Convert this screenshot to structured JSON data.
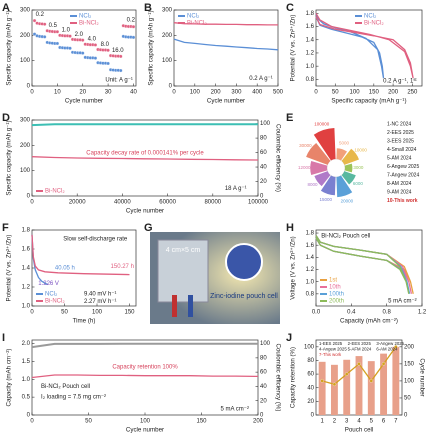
{
  "chart_data": [
    {
      "type": "scatter",
      "panel": "A",
      "xlabel": "Cycle number",
      "ylabel": "Specific capacity (mAh g⁻¹)",
      "xlim": [
        0,
        41
      ],
      "ylim": [
        0,
        300
      ],
      "xticks": [
        0,
        10,
        20,
        30,
        40
      ],
      "yticks": [
        0,
        100,
        200,
        300
      ],
      "legend": "upper center",
      "series": [
        {
          "name": "NCl₂",
          "color": "#5b8fd6",
          "mode": "markers",
          "x": [
            1,
            2,
            3,
            4,
            5,
            6,
            7,
            8,
            9,
            10,
            11,
            12,
            13,
            14,
            15,
            16,
            17,
            18,
            19,
            20,
            21,
            22,
            23,
            24,
            25,
            26,
            27,
            28,
            29,
            30,
            31,
            32,
            33,
            34,
            35,
            36,
            37,
            38,
            39,
            40
          ],
          "values": [
            205,
            198,
            196,
            195,
            194,
            172,
            170,
            169,
            168,
            168,
            152,
            151,
            150,
            150,
            149,
            133,
            132,
            131,
            131,
            130,
            113,
            112,
            111,
            111,
            110,
            92,
            91,
            90,
            90,
            89,
            64,
            63,
            62,
            62,
            61,
            196,
            194,
            193,
            193,
            192
          ]
        },
        {
          "name": "Bi-NCl₂",
          "color": "#e06080",
          "mode": "markers",
          "x": [
            1,
            2,
            3,
            4,
            5,
            6,
            7,
            8,
            9,
            10,
            11,
            12,
            13,
            14,
            15,
            16,
            17,
            18,
            19,
            20,
            21,
            22,
            23,
            24,
            25,
            26,
            27,
            28,
            29,
            30,
            31,
            32,
            33,
            34,
            35,
            36,
            37,
            38,
            39,
            40
          ],
          "values": [
            258,
            248,
            246,
            245,
            244,
            218,
            216,
            215,
            214,
            214,
            200,
            199,
            198,
            198,
            197,
            184,
            183,
            182,
            182,
            181,
            165,
            164,
            163,
            163,
            162,
            144,
            143,
            142,
            142,
            141,
            120,
            119,
            118,
            118,
            117,
            238,
            236,
            235,
            235,
            234
          ]
        }
      ],
      "annotations": [
        "0.2",
        "0.5",
        "1.0",
        "2.0",
        "4.0",
        "8.0",
        "16.0",
        "0.2",
        "Unit: A g⁻¹"
      ]
    },
    {
      "type": "line",
      "panel": "B",
      "xlabel": "Cycle number",
      "ylabel": "Specific capacity (mAh g⁻¹)",
      "xlim": [
        0,
        500
      ],
      "ylim": [
        0,
        300
      ],
      "xticks": [
        0,
        100,
        200,
        300,
        400,
        500
      ],
      "yticks": [
        0,
        100,
        200,
        300
      ],
      "legend": "upper left",
      "series": [
        {
          "name": "NCl₂",
          "color": "#5b8fd6",
          "mode": "line",
          "x": [
            0,
            50,
            100,
            150,
            200,
            250,
            300,
            350,
            400,
            450,
            500
          ],
          "values": [
            185,
            172,
            168,
            164,
            160,
            157,
            154,
            151,
            148,
            146,
            143
          ]
        },
        {
          "name": "Bi-NCl₂",
          "color": "#e06080",
          "mode": "line",
          "x": [
            0,
            50,
            100,
            150,
            200,
            250,
            300,
            350,
            400,
            450,
            500
          ],
          "values": [
            250,
            246,
            245,
            244,
            244,
            243,
            243,
            242,
            242,
            241,
            241
          ]
        }
      ],
      "annotations": [
        "0.2 A g⁻¹"
      ]
    },
    {
      "type": "line",
      "panel": "C",
      "xlabel": "Specific capacity (mAh g⁻¹)",
      "ylabel": "Potential (V vs. Zn²⁺/Zn)",
      "xlim": [
        0,
        275
      ],
      "ylim": [
        0.7,
        1.85
      ],
      "xticks": [
        0,
        50,
        100,
        150,
        200,
        250
      ],
      "yticks": [
        0.8,
        {
          "value": 1,
          "label": "1.0"
        },
        1.2,
        1.4,
        1.6,
        1.8
      ],
      "legend": "upper center",
      "series": [
        {
          "name": "NCl₂",
          "color": "#5b8fd6",
          "mode": "line",
          "x": [
            0,
            10,
            40,
            80,
            120,
            150,
            165,
            172,
            175,
            170,
            160,
            130,
            90,
            50,
            20,
            5,
            0
          ],
          "values": [
            1.75,
            1.62,
            1.56,
            1.5,
            1.44,
            1.36,
            1.2,
            1.0,
            0.82,
            1.0,
            1.25,
            1.42,
            1.52,
            1.58,
            1.64,
            1.72,
            1.8
          ]
        },
        {
          "name": "Bi-NCl₂",
          "color": "#e06080",
          "mode": "line",
          "x": [
            0,
            10,
            50,
            100,
            150,
            200,
            230,
            245,
            252,
            245,
            230,
            190,
            140,
            90,
            40,
            10,
            0
          ],
          "values": [
            1.75,
            1.63,
            1.56,
            1.51,
            1.46,
            1.4,
            1.25,
            1.05,
            0.82,
            1.0,
            1.22,
            1.4,
            1.48,
            1.54,
            1.6,
            1.7,
            1.8
          ]
        }
      ],
      "annotations": [
        "0.2 A g⁻¹, 1ˢᵗ"
      ]
    },
    {
      "type": "line",
      "panel": "D",
      "xlabel": "Cycle number",
      "ylabel": "Specific capacity (mAh g⁻¹)",
      "y2label": "Coulombic efficiency (%)",
      "xlim": [
        0,
        100000
      ],
      "ylim": [
        0,
        300
      ],
      "y2lim": [
        0,
        105
      ],
      "xticks": [
        0,
        20000,
        40000,
        60000,
        80000,
        100000
      ],
      "yticks": [
        0,
        100,
        200,
        300
      ],
      "y2ticks": [
        0,
        20,
        40,
        60,
        80,
        100
      ],
      "legend": "lower left",
      "series": [
        {
          "name": "Bi-NCl₂",
          "color": "#e06080",
          "mode": "line",
          "x": [
            0,
            10000,
            20000,
            30000,
            40000,
            50000,
            60000,
            70000,
            80000,
            90000,
            100000
          ],
          "values": [
            155,
            152,
            150,
            149,
            148,
            147,
            146,
            145,
            144,
            143,
            142
          ]
        },
        {
          "color": "#3cbfb4",
          "mode": "line",
          "axis": "y2",
          "x": [
            0,
            10000,
            20000,
            30000,
            40000,
            50000,
            60000,
            70000,
            80000,
            90000,
            100000
          ],
          "values": [
            98,
            99,
            99,
            99,
            99,
            99,
            99,
            99,
            99,
            99,
            99
          ]
        }
      ],
      "annotations": [
        "Capacity decay rate of 0.000141% per cycle",
        "18 A g⁻¹"
      ]
    },
    {
      "type": "radial_bar",
      "panel": "E",
      "log": true,
      "ylim": [
        1000,
        100000
      ],
      "categories": [
        "1-NC 2024",
        "2-EES 2025",
        "3-EES 2025",
        "4-Small 2024",
        "5-AM 2024",
        "6-Angew 2025",
        "7-Angew 2024",
        "8-AM 2024",
        "9-AM 2024",
        "10-This work"
      ],
      "values": [
        5000,
        10000,
        3000,
        6000,
        20000,
        15000,
        8000,
        12000,
        30000,
        100000
      ],
      "colors": [
        "#f2a07a",
        "#e8b84a",
        "#9cc45a",
        "#58b8a0",
        "#5aa0d8",
        "#7a80d0",
        "#b07ac8",
        "#d878a8",
        "#e8846a",
        "#e04040"
      ]
    },
    {
      "type": "line",
      "panel": "F",
      "xlabel": "Time (h)",
      "ylabel": "Potential (V vs. Zn²⁺/Zn)",
      "xlim": [
        0,
        160
      ],
      "ylim": [
        1.0,
        1.8
      ],
      "xticks": [
        0,
        50,
        100,
        150
      ],
      "yticks": [
        {
          "value": 1,
          "label": "1.0"
        },
        1.2,
        1.4,
        1.6,
        1.8
      ],
      "legend": "lower left",
      "series": [
        {
          "name": "NCl₂",
          "color": "#5b8fd6",
          "mode": "line",
          "x": [
            0,
            2,
            5,
            10,
            15,
            20,
            24
          ],
          "values": [
            1.75,
            1.5,
            1.38,
            1.3,
            1.26,
            1.24,
            1.226
          ]
        },
        {
          "name": "Bi-NCl₂",
          "color": "#e06080",
          "mode": "line",
          "x": [
            0,
            2,
            5,
            10,
            20,
            40,
            80,
            120,
            150
          ],
          "values": [
            1.75,
            1.52,
            1.42,
            1.38,
            1.36,
            1.35,
            1.34,
            1.335,
            1.33
          ]
        }
      ],
      "annotations": [
        "Slow self-discharge rate",
        "1.226 V",
        "40.05 h",
        "150.27 h",
        "9.40 mV h⁻¹",
        "2.27 mV h⁻¹"
      ]
    },
    {
      "type": "line",
      "panel": "H",
      "xlabel": "Capacity (mAh cm⁻²)",
      "ylabel": "Voltage (V vs. Zn²⁺/Zn)",
      "xlim": [
        0,
        1.2
      ],
      "ylim": [
        0.6,
        1.85
      ],
      "xticks": [
        {
          "value": 0,
          "label": "0.0"
        },
        0.4,
        0.8,
        1.2
      ],
      "yticks": [
        0.8,
        {
          "value": 1,
          "label": "1.0"
        },
        1.2,
        1.4,
        1.6,
        1.8
      ],
      "legend": "lower left",
      "series": [
        {
          "name": "1st",
          "color": "#e8a040",
          "mode": "line",
          "x": [
            0,
            0.05,
            0.2,
            0.5,
            0.8,
            1.0,
            1.07,
            1.1,
            1.07,
            1.0,
            0.8,
            0.5,
            0.2,
            0.05,
            0
          ],
          "values": [
            1.72,
            1.6,
            1.5,
            1.42,
            1.35,
            1.2,
            1.0,
            0.8,
            1.0,
            1.25,
            1.45,
            1.52,
            1.58,
            1.65,
            1.76
          ]
        },
        {
          "name": "10th",
          "color": "#e8709a",
          "mode": "line",
          "x": [
            0,
            0.05,
            0.2,
            0.5,
            0.8,
            0.98,
            1.05,
            1.08,
            1.05,
            0.98,
            0.8,
            0.5,
            0.2,
            0.05,
            0
          ],
          "values": [
            1.72,
            1.6,
            1.5,
            1.42,
            1.35,
            1.2,
            1.0,
            0.8,
            1.0,
            1.25,
            1.45,
            1.52,
            1.58,
            1.65,
            1.76
          ]
        },
        {
          "name": "100th",
          "color": "#5aa0d8",
          "mode": "line",
          "x": [
            0,
            0.05,
            0.2,
            0.5,
            0.8,
            0.96,
            1.03,
            1.06,
            1.03,
            0.96,
            0.8,
            0.5,
            0.2,
            0.05,
            0
          ],
          "values": [
            1.72,
            1.6,
            1.5,
            1.42,
            1.35,
            1.2,
            1.0,
            0.8,
            1.0,
            1.25,
            1.45,
            1.52,
            1.58,
            1.65,
            1.76
          ]
        },
        {
          "name": "200th",
          "color": "#8dbb5a",
          "mode": "line",
          "x": [
            0,
            0.05,
            0.2,
            0.5,
            0.8,
            0.95,
            1.02,
            1.05,
            1.02,
            0.95,
            0.8,
            0.5,
            0.2,
            0.05,
            0
          ],
          "values": [
            1.72,
            1.6,
            1.5,
            1.42,
            1.35,
            1.2,
            1.0,
            0.8,
            1.0,
            1.25,
            1.45,
            1.52,
            1.58,
            1.65,
            1.76
          ]
        }
      ],
      "annotations": [
        "Bi-NCl₂   Pouch cell",
        "5 mA cm⁻²"
      ]
    },
    {
      "type": "line",
      "panel": "I",
      "xlabel": "Cycle number",
      "ylabel": "Capacity (mAh cm⁻²)",
      "y2label": "Coulombic efficiency (%)",
      "xlim": [
        0,
        200
      ],
      "ylim": [
        0,
        2.1
      ],
      "y2lim": [
        0,
        105
      ],
      "xticks": [
        0,
        50,
        100,
        150,
        200
      ],
      "yticks": [
        0,
        0.5,
        {
          "value": 1,
          "label": "1.0"
        },
        1.5,
        {
          "value": 2,
          "label": "2.0"
        }
      ],
      "y2ticks": [
        0,
        20,
        40,
        60,
        80,
        100
      ],
      "series": [
        {
          "color": "#e06080",
          "mode": "line",
          "x": [
            0,
            20,
            40,
            60,
            80,
            100,
            120,
            140,
            160,
            180,
            200
          ],
          "values": [
            1.05,
            1.12,
            1.12,
            1.11,
            1.11,
            1.1,
            1.1,
            1.1,
            1.09,
            1.09,
            1.08
          ]
        },
        {
          "color": "#9a9a9a",
          "mode": "line",
          "axis": "y2",
          "x": [
            0,
            20,
            40,
            60,
            80,
            100,
            120,
            140,
            160,
            180,
            200
          ],
          "values": [
            95,
            99.5,
            99.6,
            99.6,
            99.7,
            99.7,
            99.7,
            99.8,
            99.8,
            99.8,
            99.8
          ]
        }
      ],
      "annotations": [
        "Capacity retention 100%",
        "Bi-NCl₂    Pouch cell",
        "I₂ loading = 7.5 mg cm⁻²",
        "5 mA cm⁻²"
      ]
    },
    {
      "type": "bar",
      "panel": "J",
      "xlabel": "Pouch cell",
      "ylabel": "Capacity retention (%)",
      "y2label": "Cycle number",
      "categories": [
        "1",
        "2",
        "3",
        "4",
        "5",
        "6",
        "7"
      ],
      "ylim": [
        0,
        110
      ],
      "y2lim": [
        0,
        220
      ],
      "yticks": [
        0,
        20,
        40,
        60,
        80,
        100
      ],
      "y2ticks": [
        0,
        50,
        100,
        150,
        200
      ],
      "series": [
        {
          "color": "#e8a08a",
          "mode": "bar",
          "values": [
            78,
            73.6,
            81,
            86.4,
            79,
            90,
            100
          ]
        },
        {
          "color": "#d4a020",
          "mode": "line_markers",
          "axis": "y2",
          "values": [
            100,
            90,
            120,
            150,
            100,
            150,
            200
          ]
        }
      ],
      "notes": [
        "1-EES 2025",
        "2-EES 2025",
        "3-Angew 2025",
        "4-Angew 2025",
        "5-AFM 2024",
        "6-AM 2024",
        "7-This work"
      ]
    }
  ],
  "photo": {
    "panel": "G",
    "labels": [
      "4 cm×5 cm",
      "Zinc-iodine pouch cell"
    ]
  }
}
